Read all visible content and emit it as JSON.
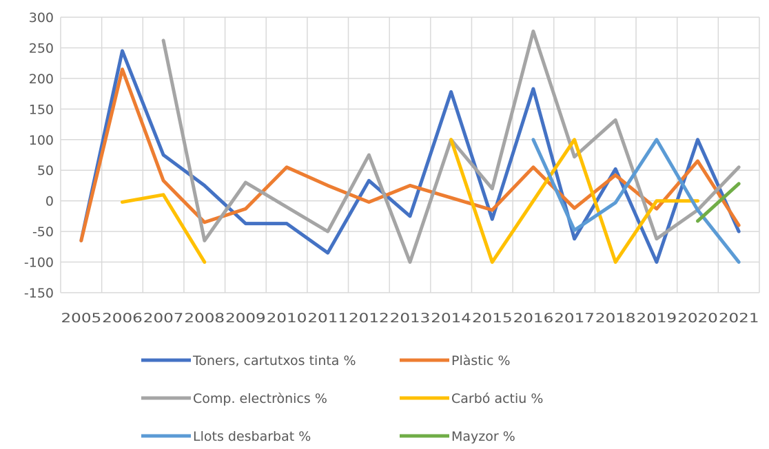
{
  "chart_data": {
    "type": "line",
    "title": "",
    "xlabel": "",
    "ylabel": "",
    "ylim": [
      -150,
      300
    ],
    "yticks": [
      300,
      250,
      200,
      150,
      100,
      50,
      0,
      -50,
      -100,
      -150
    ],
    "grid": true,
    "legend_position": "bottom",
    "categories": [
      "2005",
      "2006",
      "2007",
      "2008",
      "2009",
      "2010",
      "2011",
      "2012",
      "2013",
      "2014",
      "2015",
      "2016",
      "2017",
      "2018",
      "2019",
      "2020",
      "2021"
    ],
    "series": [
      {
        "name": "Toners, cartutxos tinta %",
        "color": "#4472c4",
        "values": [
          -65,
          245,
          75,
          25,
          -37,
          -37,
          -85,
          33,
          -25,
          178,
          -30,
          183,
          -62,
          52,
          -100,
          100,
          -50
        ]
      },
      {
        "name": "Plàstic %",
        "color": "#ed7d31",
        "values": [
          -65,
          215,
          33,
          -35,
          -13,
          55,
          25,
          -2,
          25,
          5,
          -15,
          55,
          -12,
          42,
          -13,
          65,
          -40
        ]
      },
      {
        "name": "Comp. electrònics %",
        "color": "#a5a5a5",
        "values": [
          null,
          null,
          262,
          -65,
          30,
          -10,
          -50,
          75,
          -100,
          100,
          20,
          277,
          72,
          132,
          -62,
          -15,
          55
        ]
      },
      {
        "name": "Carbó actiu %",
        "color": "#ffc000",
        "values": [
          null,
          -2,
          10,
          -100,
          null,
          null,
          null,
          null,
          null,
          100,
          -100,
          0,
          100,
          -100,
          0,
          0,
          null
        ]
      },
      {
        "name": "Llots desbarbat %",
        "color": "#5b9bd5",
        "values": [
          null,
          null,
          null,
          null,
          null,
          null,
          null,
          null,
          null,
          null,
          null,
          100,
          -48,
          -3,
          100,
          -15,
          -100
        ]
      },
      {
        "name": "Mayzor %",
        "color": "#70ad47",
        "values": [
          null,
          null,
          null,
          null,
          null,
          null,
          null,
          null,
          null,
          null,
          null,
          null,
          null,
          null,
          null,
          -33,
          28
        ]
      }
    ]
  }
}
